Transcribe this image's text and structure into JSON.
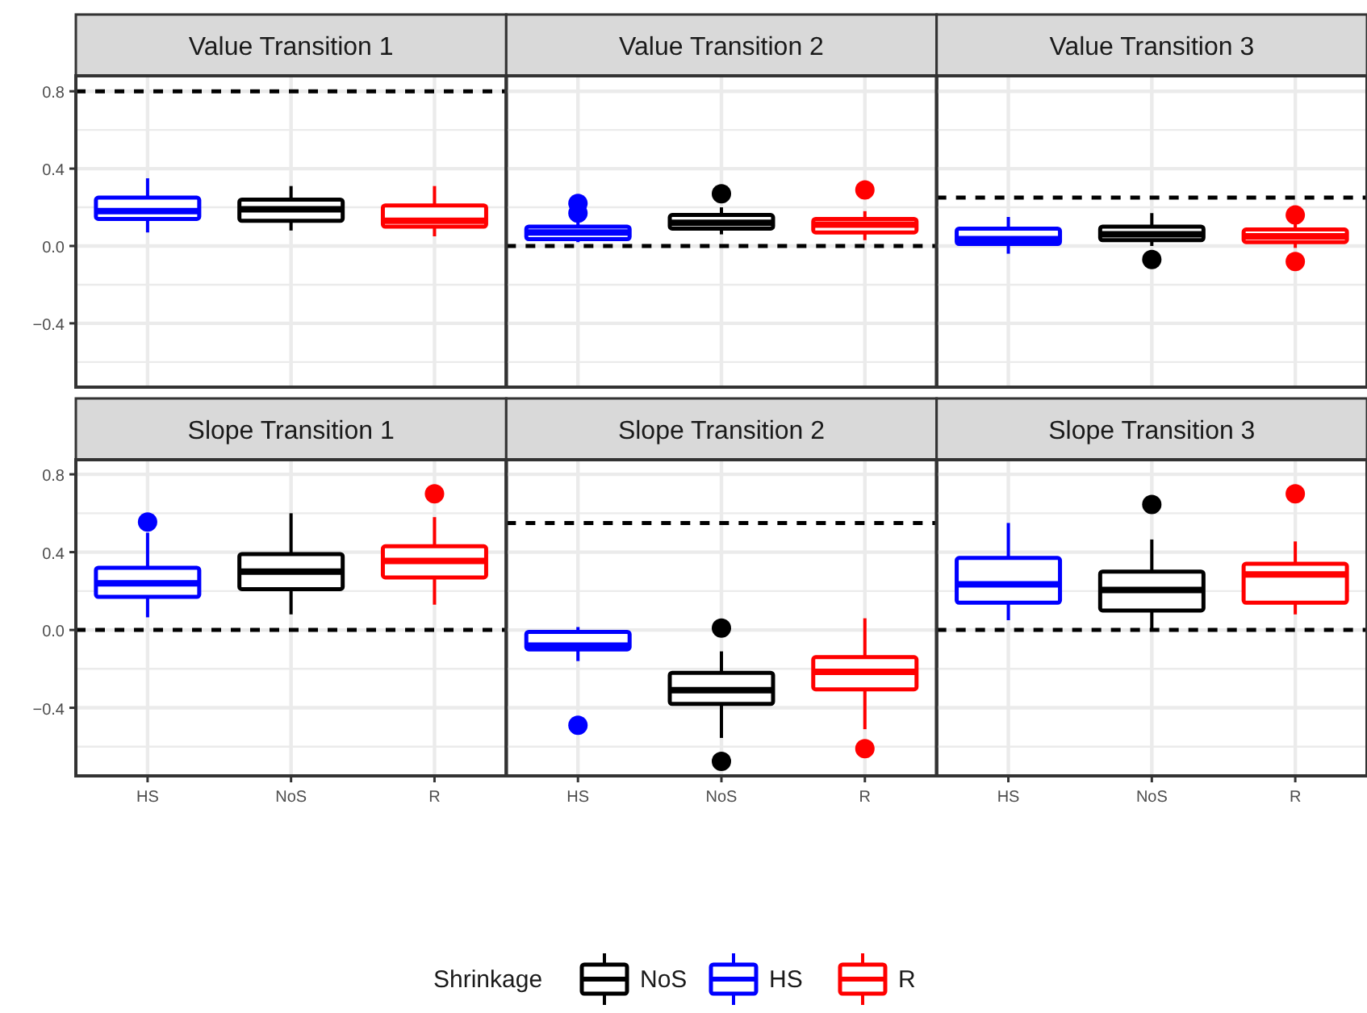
{
  "chart_data": [
    {
      "type": "box",
      "title": "Value Transition 1",
      "categories": [
        "HS",
        "NoS",
        "R"
      ],
      "ylim": [
        -0.73,
        0.88
      ],
      "yticks": [
        {
          "value": -0.6,
          "label": null
        },
        -0.4,
        {
          "value": -0.2,
          "label": null
        },
        {
          "value": 0,
          "label": "0.0"
        },
        {
          "value": 0.2,
          "label": null
        },
        0.4,
        {
          "value": 0.6,
          "label": null
        },
        0.8
      ],
      "grid": true,
      "tick_labels": "y",
      "ref_lines": [
        {
          "axis": "y",
          "value": 0.8,
          "color": "#000000",
          "line_style": "dashed"
        }
      ],
      "legend": "bottom",
      "legend_title": "Shrinkage",
      "series": [
        {
          "name": "NoS",
          "color": "#000000",
          "boxes": [
            null,
            {
              "low": 0.08,
              "q1": 0.13,
              "median": 0.19,
              "q3": 0.24,
              "high": 0.31
            },
            null
          ]
        },
        {
          "name": "HS",
          "color": "#0000ff",
          "boxes": [
            {
              "low": 0.07,
              "q1": 0.14,
              "median": 0.18,
              "q3": 0.25,
              "high": 0.35
            },
            null,
            null
          ]
        },
        {
          "name": "R",
          "color": "#ff0000",
          "boxes": [
            null,
            null,
            {
              "low": 0.05,
              "q1": 0.1,
              "median": 0.13,
              "q3": 0.21,
              "high": 0.31
            }
          ]
        }
      ]
    },
    {
      "type": "box",
      "title": "Value Transition 2",
      "categories": [
        "HS",
        "NoS",
        "R"
      ],
      "ylim": [
        -0.73,
        0.88
      ],
      "yticks": [
        {
          "value": -0.6,
          "label": null
        },
        -0.4,
        {
          "value": -0.2,
          "label": null
        },
        {
          "value": 0,
          "label": "0.0"
        },
        {
          "value": 0.2,
          "label": null
        },
        0.4,
        {
          "value": 0.6,
          "label": null
        },
        0.8
      ],
      "grid": true,
      "tick_labels": false,
      "ref_lines": [
        {
          "axis": "y",
          "value": 0.0,
          "color": "#000000",
          "line_style": "dashed"
        }
      ],
      "series": [
        {
          "name": "NoS",
          "color": "#000000",
          "boxes": [
            null,
            {
              "low": 0.06,
              "q1": 0.09,
              "median": 0.12,
              "q3": 0.16,
              "high": 0.2,
              "outliers": [
                0.27
              ]
            },
            null
          ]
        },
        {
          "name": "HS",
          "color": "#0000ff",
          "boxes": [
            {
              "low": 0.02,
              "q1": 0.035,
              "median": 0.07,
              "q3": 0.1,
              "high": 0.13,
              "outliers": [
                0.17,
                0.22
              ]
            },
            null,
            null
          ]
        },
        {
          "name": "R",
          "color": "#ff0000",
          "boxes": [
            null,
            null,
            {
              "low": 0.03,
              "q1": 0.07,
              "median": 0.11,
              "q3": 0.14,
              "high": 0.18,
              "outliers": [
                0.29
              ]
            }
          ]
        }
      ]
    },
    {
      "type": "box",
      "title": "Value Transition 3",
      "categories": [
        "HS",
        "NoS",
        "R"
      ],
      "ylim": [
        -0.73,
        0.88
      ],
      "yticks": [
        {
          "value": -0.6,
          "label": null
        },
        -0.4,
        {
          "value": -0.2,
          "label": null
        },
        {
          "value": 0,
          "label": "0.0"
        },
        {
          "value": 0.2,
          "label": null
        },
        0.4,
        {
          "value": 0.6,
          "label": null
        },
        0.8
      ],
      "grid": true,
      "tick_labels": false,
      "ref_lines": [
        {
          "axis": "y",
          "value": 0.25,
          "color": "#000000",
          "line_style": "dashed"
        }
      ],
      "series": [
        {
          "name": "NoS",
          "color": "#000000",
          "boxes": [
            null,
            {
              "low": 0.0,
              "q1": 0.03,
              "median": 0.06,
              "q3": 0.1,
              "high": 0.17,
              "outliers": [
                -0.07
              ]
            },
            null
          ]
        },
        {
          "name": "HS",
          "color": "#0000ff",
          "boxes": [
            {
              "low": -0.04,
              "q1": 0.01,
              "median": 0.035,
              "q3": 0.09,
              "high": 0.15
            },
            null,
            null
          ]
        },
        {
          "name": "R",
          "color": "#ff0000",
          "boxes": [
            null,
            null,
            {
              "low": -0.01,
              "q1": 0.02,
              "median": 0.05,
              "q3": 0.085,
              "high": 0.12,
              "outliers": [
                -0.08,
                0.16
              ]
            }
          ]
        }
      ]
    },
    {
      "type": "box",
      "title": "Slope Transition 1",
      "categories": [
        "HS",
        "NoS",
        "R"
      ],
      "ylim": [
        -0.75,
        0.875
      ],
      "yticks": [
        {
          "value": -0.6,
          "label": null
        },
        -0.4,
        {
          "value": -0.2,
          "label": null
        },
        {
          "value": 0,
          "label": "0.0"
        },
        {
          "value": 0.2,
          "label": null
        },
        0.4,
        {
          "value": 0.6,
          "label": null
        },
        0.8
      ],
      "grid": true,
      "ref_lines": [
        {
          "axis": "y",
          "value": 0.0,
          "color": "#000000",
          "line_style": "dashed"
        }
      ],
      "series": [
        {
          "name": "NoS",
          "color": "#000000",
          "boxes": [
            null,
            {
              "low": 0.08,
              "q1": 0.21,
              "median": 0.3,
              "q3": 0.39,
              "high": 0.6
            },
            null
          ]
        },
        {
          "name": "HS",
          "color": "#0000ff",
          "boxes": [
            {
              "low": 0.065,
              "q1": 0.17,
              "median": 0.24,
              "q3": 0.32,
              "high": 0.5,
              "outliers": [
                0.555
              ]
            },
            null,
            null
          ]
        },
        {
          "name": "R",
          "color": "#ff0000",
          "boxes": [
            null,
            null,
            {
              "low": 0.13,
              "q1": 0.27,
              "median": 0.355,
              "q3": 0.43,
              "high": 0.58,
              "outliers": [
                0.7
              ]
            }
          ]
        }
      ]
    },
    {
      "type": "box",
      "title": "Slope Transition 2",
      "categories": [
        "HS",
        "NoS",
        "R"
      ],
      "ylim": [
        -0.75,
        0.875
      ],
      "yticks": [
        {
          "value": -0.6,
          "label": null
        },
        -0.4,
        {
          "value": -0.2,
          "label": null
        },
        {
          "value": 0,
          "label": "0.0"
        },
        {
          "value": 0.2,
          "label": null
        },
        0.4,
        {
          "value": 0.6,
          "label": null
        },
        0.8
      ],
      "grid": true,
      "tick_labels": "x",
      "ref_lines": [
        {
          "axis": "y",
          "value": 0.55,
          "color": "#000000",
          "line_style": "dashed"
        }
      ],
      "series": [
        {
          "name": "NoS",
          "color": "#000000",
          "boxes": [
            null,
            {
              "low": -0.555,
              "q1": -0.38,
              "median": -0.31,
              "q3": -0.22,
              "high": -0.11,
              "outliers": [
                0.01,
                -0.675
              ]
            },
            null
          ]
        },
        {
          "name": "HS",
          "color": "#0000ff",
          "boxes": [
            {
              "low": -0.16,
              "q1": -0.1,
              "median": -0.08,
              "q3": -0.01,
              "high": 0.015,
              "outliers": [
                -0.49
              ]
            },
            null,
            null
          ]
        },
        {
          "name": "R",
          "color": "#ff0000",
          "boxes": [
            null,
            null,
            {
              "low": -0.51,
              "q1": -0.305,
              "median": -0.215,
              "q3": -0.14,
              "high": 0.06,
              "outliers": [
                -0.61
              ]
            }
          ]
        }
      ]
    },
    {
      "type": "box",
      "title": "Slope Transition 3",
      "categories": [
        "HS",
        "NoS",
        "R"
      ],
      "ylim": [
        -0.75,
        0.875
      ],
      "yticks": [
        {
          "value": -0.6,
          "label": null
        },
        -0.4,
        {
          "value": -0.2,
          "label": null
        },
        {
          "value": 0,
          "label": "0.0"
        },
        {
          "value": 0.2,
          "label": null
        },
        0.4,
        {
          "value": 0.6,
          "label": null
        },
        0.8
      ],
      "grid": true,
      "tick_labels": "x",
      "ref_lines": [
        {
          "axis": "y",
          "value": 0.0,
          "color": "#000000",
          "line_style": "dashed"
        }
      ],
      "series": [
        {
          "name": "NoS",
          "color": "#000000",
          "boxes": [
            null,
            {
              "low": 0.0,
              "q1": 0.1,
              "median": 0.205,
              "q3": 0.3,
              "high": 0.465,
              "outliers": [
                0.645
              ]
            },
            null
          ]
        },
        {
          "name": "HS",
          "color": "#0000ff",
          "boxes": [
            {
              "low": 0.05,
              "q1": 0.14,
              "median": 0.235,
              "q3": 0.37,
              "high": 0.55
            },
            null,
            null
          ]
        },
        {
          "name": "R",
          "color": "#ff0000",
          "boxes": [
            null,
            null,
            {
              "low": 0.08,
              "q1": 0.14,
              "median": 0.285,
              "q3": 0.34,
              "high": 0.455,
              "outliers": [
                0.7
              ]
            }
          ]
        }
      ]
    }
  ]
}
